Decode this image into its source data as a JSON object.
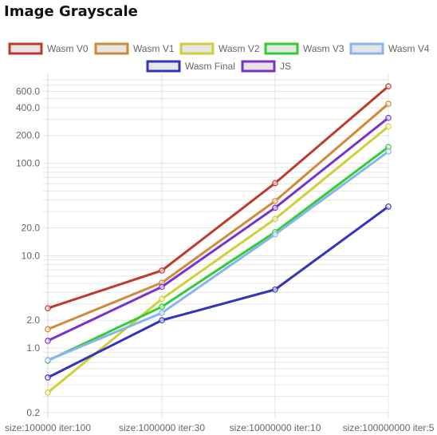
{
  "page": {
    "title": "Image Grayscale"
  },
  "chart_data": {
    "type": "line",
    "title": "",
    "xlabel": "",
    "ylabel": "",
    "yscale": "log",
    "ylim": [
      0.2,
      800
    ],
    "grid": true,
    "legend_position": "top",
    "categories": [
      "size:100000 iter:100",
      "size:1000000 iter:30",
      "size:10000000 iter:10",
      "size:100000000 iter:5"
    ],
    "y_ticks": [
      0.2,
      1.0,
      2.0,
      10.0,
      20.0,
      100.0,
      200.0,
      400.0,
      600.0
    ],
    "y_tick_labels": [
      "0.2",
      "1.0",
      "2.0",
      "10.0",
      "20.0",
      "100.0",
      "200.0",
      "400.0",
      "600.0"
    ],
    "series": [
      {
        "name": "Wasm V0",
        "color": "#c0392b",
        "values": [
          2.7,
          6.9,
          61,
          680
        ]
      },
      {
        "name": "Wasm V1",
        "color": "#d08a3a",
        "values": [
          1.6,
          5.1,
          39,
          440
        ]
      },
      {
        "name": "Wasm V2",
        "color": "#cfcf3a",
        "values": [
          0.33,
          3.4,
          25,
          250
        ]
      },
      {
        "name": "Wasm V3",
        "color": "#33cc33",
        "values": [
          0.73,
          2.8,
          18,
          150
        ]
      },
      {
        "name": "Wasm V4",
        "color": "#8ab4f0",
        "values": [
          0.74,
          2.4,
          17,
          134
        ]
      },
      {
        "name": "Wasm Final",
        "color": "#3333bb",
        "values": [
          0.48,
          2.0,
          4.3,
          34
        ]
      },
      {
        "name": "JS",
        "color": "#7733cc",
        "values": [
          1.2,
          4.6,
          33,
          310
        ]
      }
    ]
  }
}
